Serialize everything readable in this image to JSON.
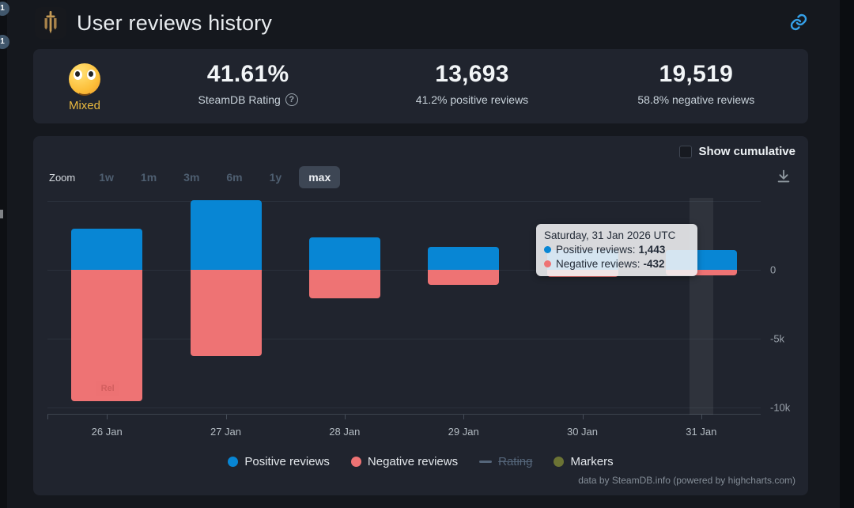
{
  "colors": {
    "positive": "#0886d4",
    "negative": "#ee7374",
    "markers": "#6b7334",
    "rating_disabled": "#55667a",
    "accent_gold": "#e9b83e",
    "link_blue": "#35a0e8"
  },
  "browser_badges": {
    "badge1": "1",
    "badge2": "1"
  },
  "header": {
    "title": "User reviews history"
  },
  "stats": {
    "mood_label": "Mixed",
    "rating_value": "41.61%",
    "rating_sub": "SteamDB Rating",
    "help_glyph": "?",
    "positive_value": "13,693",
    "positive_sub": "41.2% positive reviews",
    "negative_value": "19,519",
    "negative_sub": "58.8% negative reviews"
  },
  "chart_controls": {
    "show_cumulative_label": "Show cumulative",
    "zoom_label": "Zoom",
    "zoom_options": [
      "1w",
      "1m",
      "3m",
      "6m",
      "1y",
      "max"
    ],
    "zoom_selected": "max"
  },
  "tooltip": {
    "title": "Saturday, 31 Jan 2026 UTC",
    "rows": [
      {
        "label": "Positive reviews:",
        "value": "1,443",
        "color": "#0886d4"
      },
      {
        "label": "Negative reviews:",
        "value": "-432",
        "color": "#ee7374"
      }
    ]
  },
  "legend": [
    {
      "label": "Positive reviews",
      "color": "#0886d4",
      "marker": "circle",
      "disabled": false
    },
    {
      "label": "Negative reviews",
      "color": "#ee7374",
      "marker": "circle",
      "disabled": false
    },
    {
      "label": "Rating",
      "color": "#55667a",
      "marker": "line",
      "disabled": true
    },
    {
      "label": "Markers",
      "color": "#6b7334",
      "marker": "circle",
      "disabled": false
    }
  ],
  "credits": "data by SteamDB.info (powered by highcharts.com)",
  "chart_data": {
    "type": "bar",
    "title": "User reviews history",
    "categories": [
      "26 Jan",
      "27 Jan",
      "28 Jan",
      "29 Jan",
      "30 Jan",
      "31 Jan"
    ],
    "series": [
      {
        "name": "Positive reviews",
        "color": "#0886d4",
        "values": [
          2950,
          5040,
          2350,
          1660,
          1400,
          1443
        ]
      },
      {
        "name": "Negative reviews",
        "color": "#ee7374",
        "values": [
          -9500,
          -6250,
          -2060,
          -1090,
          -550,
          -432
        ]
      }
    ],
    "ylim": [
      -10500,
      5200
    ],
    "yticks": [
      {
        "value": 5000,
        "label": ""
      },
      {
        "value": 0,
        "label": "0"
      },
      {
        "value": -5000,
        "label": "-5k"
      },
      {
        "value": -10000,
        "label": "-10k"
      }
    ],
    "grid": true,
    "legend_position": "bottom",
    "hover_category": "31 Jan",
    "flag": {
      "label": "Rel",
      "category_index": 0
    },
    "note": "30 Jan bars mostly hidden behind tooltip; values estimated"
  }
}
